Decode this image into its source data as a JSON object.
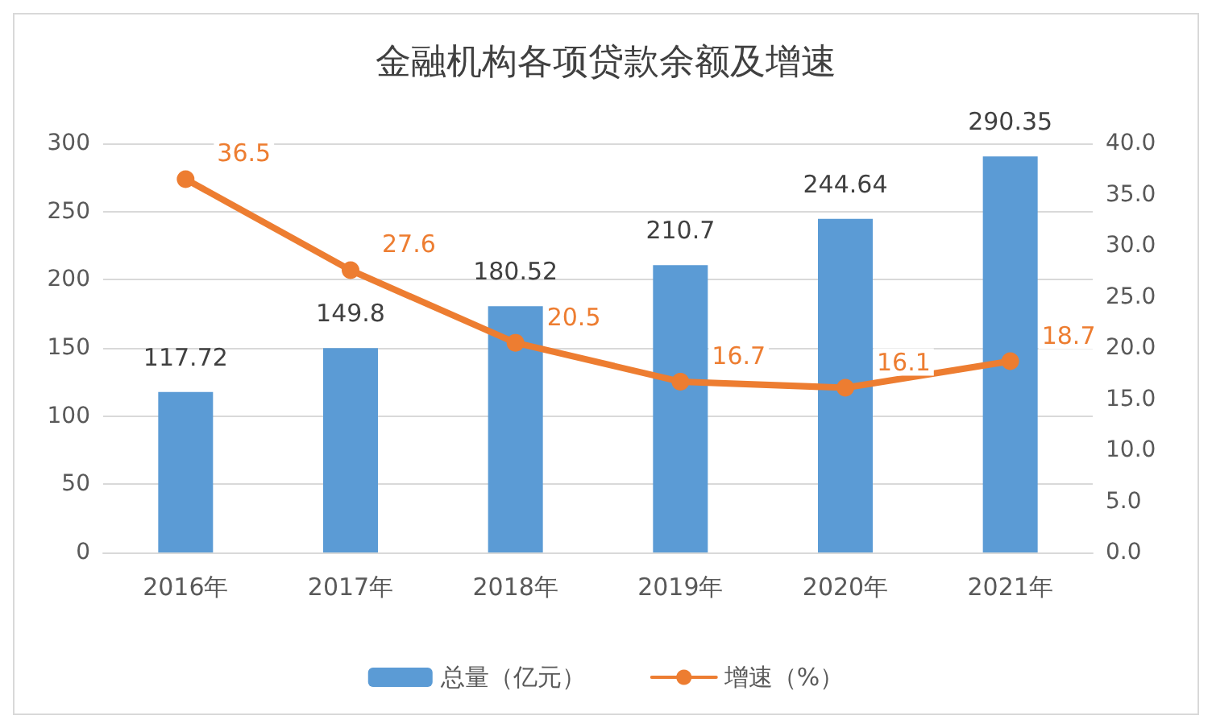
{
  "chart_data": {
    "type": "bar",
    "title": "金融机构各项贷款余额及增速",
    "categories": [
      "2016年",
      "2017年",
      "2018年",
      "2019年",
      "2020年",
      "2021年"
    ],
    "series": [
      {
        "name": "总量（亿元）",
        "color": "#5b9bd5",
        "values": [
          117.72,
          149.8,
          180.52,
          210.7,
          244.64,
          290.35
        ]
      },
      {
        "name": "增速（%）",
        "type": "line",
        "axis": "y2",
        "color": "#ed7d31",
        "values": [
          36.5,
          27.6,
          20.5,
          16.7,
          16.1,
          18.7
        ]
      }
    ],
    "ylim": [
      0,
      300
    ],
    "yticks": [
      0,
      50,
      100,
      150,
      200,
      250,
      300
    ],
    "y2lim": [
      0,
      40
    ],
    "y2ticks": [
      {
        "value": 0,
        "label": "0.0"
      },
      {
        "value": 5,
        "label": "5.0"
      },
      {
        "value": 10,
        "label": "10.0"
      },
      {
        "value": 15,
        "label": "15.0"
      },
      {
        "value": 20,
        "label": "20.0"
      },
      {
        "value": 25,
        "label": "25.0"
      },
      {
        "value": 30,
        "label": "30.0"
      },
      {
        "value": 35,
        "label": "35.0"
      },
      {
        "value": 40,
        "label": "40.0"
      }
    ],
    "data_labels": true,
    "grid": "y",
    "legend": "bottom",
    "marker": "circle"
  }
}
